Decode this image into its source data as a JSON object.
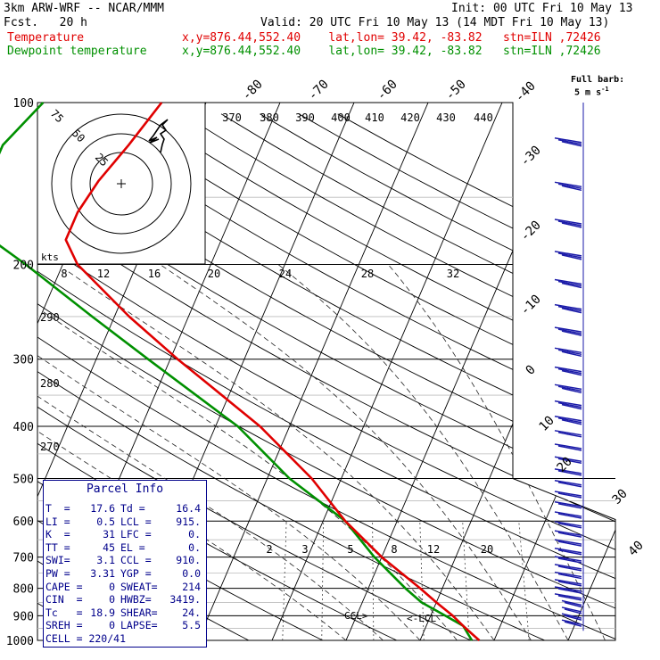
{
  "header": {
    "model": "3km ARW-WRF -- NCAR/MMM",
    "init": "Init: 00 UTC Fri 10 May 13",
    "fcst": "Fcst.   20 h",
    "valid": "Valid: 20 UTC Fri 10 May 13 (14 MDT Fri 10 May 13)",
    "temp_label": "Temperature",
    "dew_label": "Dewpoint temperature",
    "temp_info": "x,y=876.44,552.40    lat,lon= 39.42, -83.82   stn=ILN ,72426",
    "dew_info": "x,y=876.44,552.40    lat,lon= 39.42, -83.82   stn=ILN ,72426"
  },
  "colors": {
    "temperature": "#e00000",
    "dewpoint": "#009000",
    "barbs": "#1a1aa8",
    "info": "#00008b"
  },
  "wind_legend": {
    "line1": "Full barb:",
    "line2": "5 m s"
  },
  "pressure_labels": [
    "100",
    "200",
    "300",
    "400",
    "500",
    "600",
    "700",
    "800",
    "900",
    "1000"
  ],
  "temp_iso_labels": [
    "-80",
    "-70",
    "-60",
    "-50",
    "-40",
    "-30",
    "-20",
    "-10",
    "0",
    "10",
    "20",
    "30",
    "40"
  ],
  "theta_labels": [
    "370",
    "380",
    "390",
    "400",
    "410",
    "420",
    "430",
    "440"
  ],
  "mixing_upper": [
    "8",
    "12",
    "16",
    "20",
    "24",
    "28",
    "32"
  ],
  "mixing_lower": [
    "2",
    "3",
    "5",
    "8",
    "12",
    "20"
  ],
  "dry_labels": [
    "290",
    "280",
    "270"
  ],
  "hodograph": {
    "units": "kts",
    "rings": [
      "75",
      "50",
      "25"
    ]
  },
  "lcl_labels": {
    "ccl": "CCL>",
    "lcl": "<-LCL"
  },
  "parcel_info": {
    "title": "Parcel Info",
    "rows": [
      {
        "l1": "T  =",
        "v1": "17.6",
        "l2": "Td =",
        "v2": "16.4"
      },
      {
        "l1": "LI =",
        "v1": "0.5",
        "l2": "LCL =",
        "v2": "915."
      },
      {
        "l1": "K  =",
        "v1": "31",
        "l2": "LFC =",
        "v2": "0."
      },
      {
        "l1": "TT =",
        "v1": "45",
        "l2": "EL =",
        "v2": "0."
      },
      {
        "l1": "SWI=",
        "v1": "3.1",
        "l2": "CCL =",
        "v2": "910."
      },
      {
        "l1": "PW =",
        "v1": "3.31",
        "l2": "YGP =",
        "v2": "0.0"
      },
      {
        "l1": "CAPE =",
        "v1": "0",
        "l2": "SWEAT=",
        "v2": "214"
      },
      {
        "l1": "CIN  =",
        "v1": "0",
        "l2": "HWBZ=",
        "v2": "3419."
      },
      {
        "l1": "Tc   =",
        "v1": "18.9",
        "l2": "SHEAR=",
        "v2": "24."
      },
      {
        "l1": "SREH =",
        "v1": "0",
        "l2": "LAPSE=",
        "v2": "5.5"
      }
    ],
    "cell": "CELL = 220/41"
  },
  "chart_data": {
    "type": "line",
    "series": [
      {
        "name": "Temperature",
        "pressure": [
          1000,
          970,
          940,
          900,
          850,
          800,
          700,
          600,
          500,
          400,
          300,
          250,
          200,
          180,
          160,
          140,
          120,
          100
        ],
        "temperature": [
          18,
          16.5,
          15,
          13,
          10,
          7,
          0,
          -7,
          -14,
          -24,
          -39,
          -48,
          -58,
          -61,
          -61,
          -60,
          -58,
          -56
        ]
      },
      {
        "name": "Dewpoint temperature",
        "pressure": [
          1000,
          970,
          940,
          900,
          850,
          800,
          700,
          600,
          500,
          400,
          300,
          250,
          200,
          180,
          160,
          140,
          120,
          100
        ],
        "dewpoint": [
          17,
          16,
          15,
          12,
          8,
          5,
          -1,
          -7,
          -17,
          -27,
          -43,
          -53,
          -65,
          -71,
          -74,
          -75,
          -75,
          -72
        ]
      }
    ],
    "ylabel": "",
    "xlabel": "",
    "yscale": "log",
    "skew_t": true,
    "ylim": [
      1000,
      100
    ],
    "xlim_surface": [
      -40,
      40
    ]
  }
}
